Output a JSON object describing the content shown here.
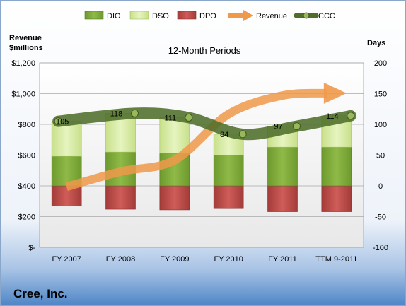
{
  "company_name": "Cree, Inc.",
  "colors": {
    "dio": "#7faa3a",
    "dso": "#d4ea9a",
    "dpo": "#c0504d",
    "revenue": "#f0994a",
    "ccc": "#5b7c32",
    "background_top": "#ffffff",
    "background_bottom": "#4f86c6"
  },
  "chart_data": {
    "type": "bar",
    "title": "12-Month Periods",
    "left_axis_label": "Revenue\n$millions",
    "right_axis_label": "Days",
    "categories": [
      "FY 2007",
      "FY 2008",
      "FY 2009",
      "FY 2010",
      "FY 2011",
      "TTM 9-2011"
    ],
    "left_axis": {
      "min": 0,
      "max": 1200,
      "ticks": [
        "$-",
        "$200",
        "$400",
        "$600",
        "$800",
        "$1,000",
        "$1,200"
      ]
    },
    "right_axis": {
      "min": -100,
      "max": 200,
      "ticks": [
        "-100",
        "-50",
        "0",
        "50",
        "100",
        "150",
        "200"
      ]
    },
    "grid": true,
    "legend_position": "top",
    "series": [
      {
        "name": "DIO",
        "axis": "right",
        "kind": "stacked-bar",
        "values": [
          48,
          55,
          53,
          50,
          63,
          63
        ]
      },
      {
        "name": "DSO",
        "axis": "right",
        "kind": "stacked-bar",
        "values": [
          57,
          63,
          58,
          34,
          34,
          51
        ]
      },
      {
        "name": "DPO",
        "axis": "right",
        "kind": "stacked-bar-negative",
        "values": [
          -33,
          -38,
          -39,
          -37,
          -42,
          -42
        ]
      },
      {
        "name": "Revenue",
        "axis": "left",
        "kind": "arrow-line",
        "values": [
          394,
          493,
          567,
          867,
          988,
          1003
        ]
      },
      {
        "name": "CCC",
        "axis": "right",
        "kind": "line",
        "values": [
          105,
          118,
          111,
          84,
          97,
          114
        ]
      }
    ],
    "data_labels": [
      "105",
      "118",
      "111",
      "84",
      "97",
      "114"
    ]
  }
}
